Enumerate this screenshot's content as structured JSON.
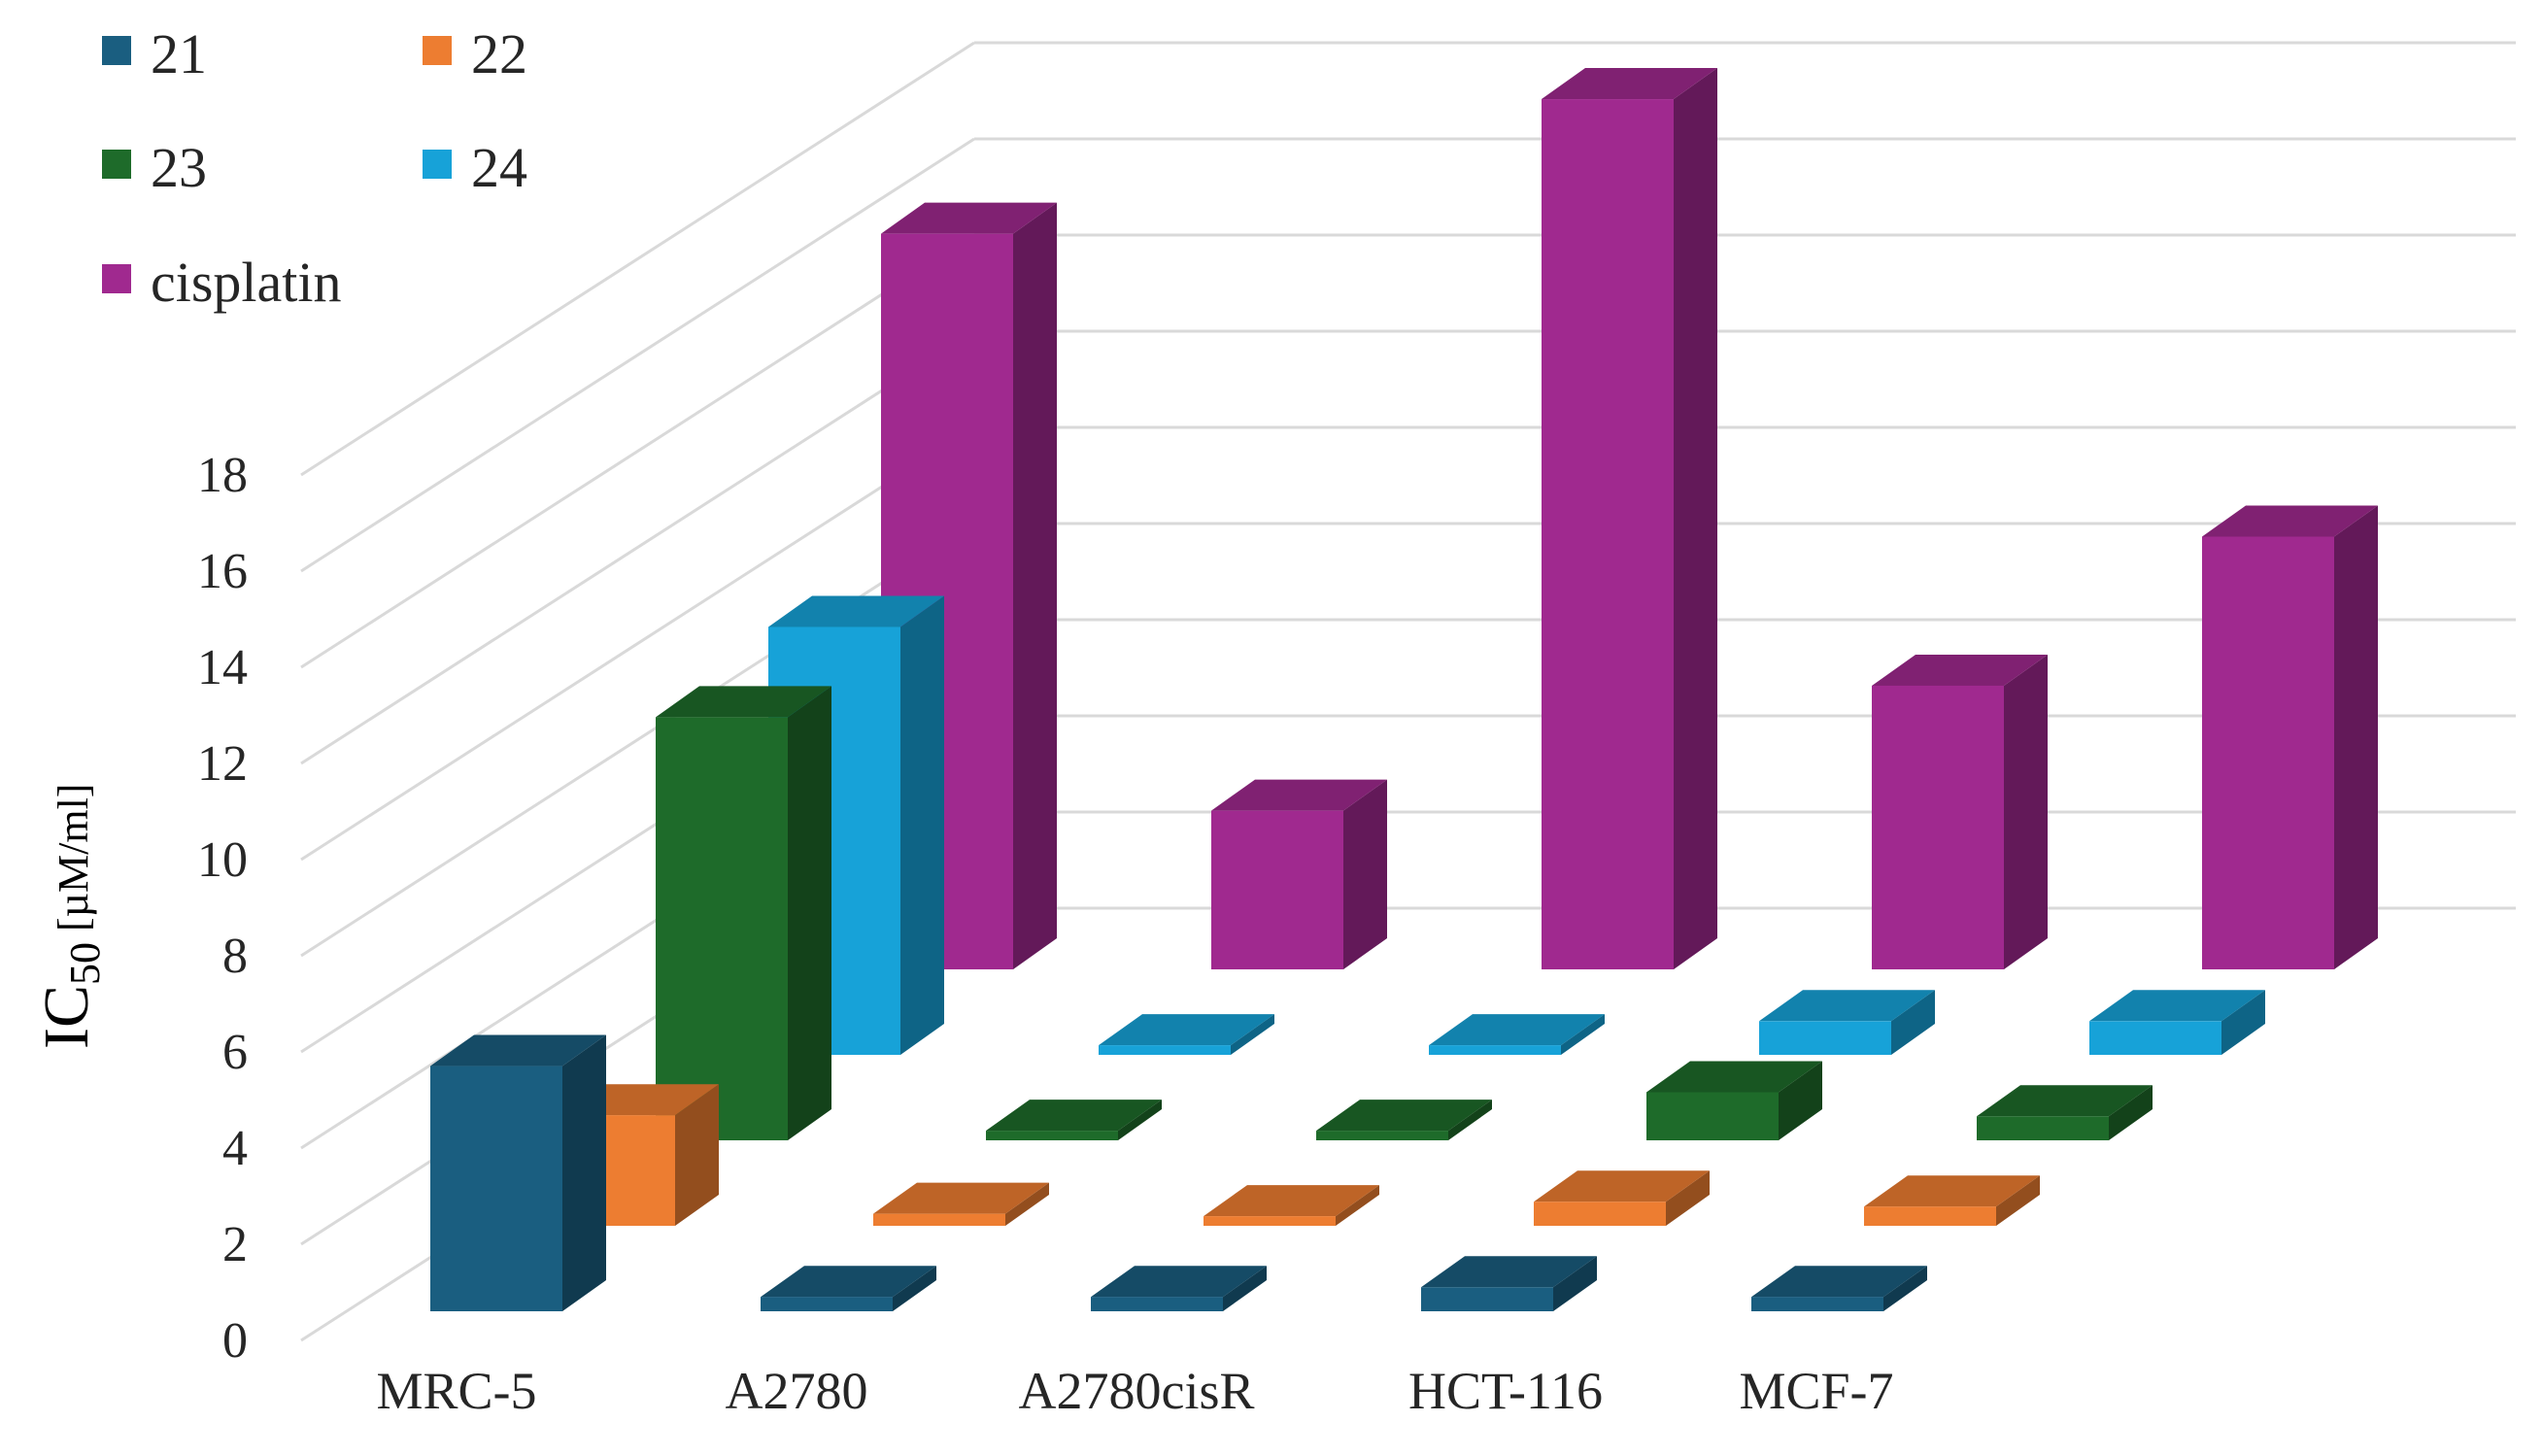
{
  "chart_data": {
    "type": "bar",
    "subtype": "3d-clustered-depth",
    "title": "",
    "xlabel": "",
    "ylabel": {
      "main": "IC",
      "sub": "50",
      "unit": " [µM/ml]"
    },
    "categories": [
      "MRC-5",
      "A2780",
      "A2780cisR",
      "HCT-116",
      "MCF-7"
    ],
    "ylim": [
      0,
      18
    ],
    "yticks": [
      "0",
      "2",
      "4",
      "6",
      "8",
      "10",
      "12",
      "14",
      "16",
      "18"
    ],
    "gridlines": true,
    "legend_position": "top-left",
    "series": [
      {
        "name": "21",
        "color": "#1a5e80",
        "values": [
          5.1,
          0.3,
          0.3,
          0.5,
          0.3
        ]
      },
      {
        "name": "22",
        "color": "#ed7d31",
        "values": [
          2.3,
          0.25,
          0.2,
          0.5,
          0.4
        ]
      },
      {
        "name": "23",
        "color": "#1e6b2a",
        "values": [
          8.8,
          0.2,
          0.2,
          1.0,
          0.5
        ]
      },
      {
        "name": "24",
        "color": "#17a2d8",
        "values": [
          8.9,
          0.2,
          0.2,
          0.7,
          0.7
        ]
      },
      {
        "name": "cisplatin",
        "color": "#a0298f",
        "values": [
          15.3,
          3.3,
          18.1,
          5.9,
          9.0
        ]
      }
    ]
  }
}
